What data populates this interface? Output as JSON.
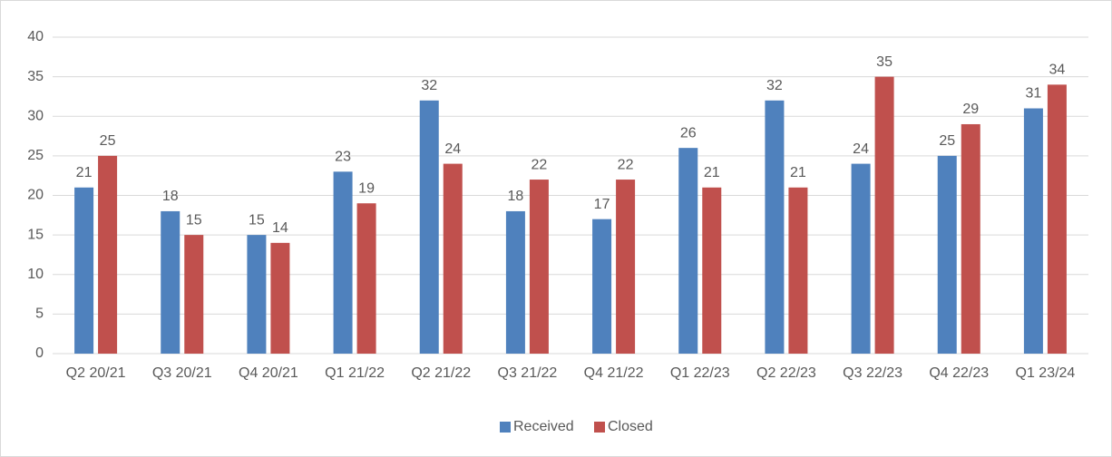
{
  "chart_data": {
    "type": "bar",
    "categories": [
      "Q2 20/21",
      "Q3 20/21",
      "Q4 20/21",
      "Q1 21/22",
      "Q2 21/22",
      "Q3 21/22",
      "Q4 21/22",
      "Q1 22/23",
      "Q2 22/23",
      "Q3 22/23",
      "Q4 22/23",
      "Q1 23/24"
    ],
    "series": [
      {
        "name": "Received",
        "color": "#4f81bd",
        "values": [
          21,
          18,
          15,
          23,
          32,
          18,
          17,
          26,
          32,
          24,
          25,
          31
        ]
      },
      {
        "name": "Closed",
        "color": "#c0504d",
        "values": [
          25,
          15,
          14,
          19,
          24,
          22,
          22,
          21,
          21,
          35,
          29,
          34
        ]
      }
    ],
    "ylim": [
      0,
      40
    ],
    "yticks": [
      0,
      5,
      10,
      15,
      20,
      25,
      30,
      35,
      40
    ],
    "grid": true,
    "legend": "bottom"
  }
}
